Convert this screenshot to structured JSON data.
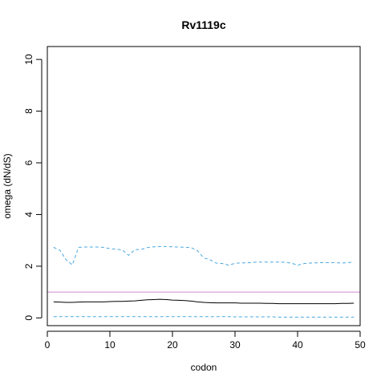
{
  "chart_data": {
    "type": "line",
    "title": "Rv1119c",
    "xlabel": "codon",
    "ylabel": "omega (dN/dS)",
    "xlim": [
      0,
      50
    ],
    "ylim": [
      -0.3,
      10.5
    ],
    "xticks": [
      0,
      10,
      20,
      30,
      40,
      50
    ],
    "yticks": [
      0,
      2,
      4,
      6,
      8,
      10
    ],
    "grid": false,
    "legend": "none",
    "reference_line": {
      "y": 1,
      "color": "#cc88cc"
    },
    "x": [
      1,
      2,
      3,
      4,
      5,
      6,
      7,
      8,
      9,
      10,
      11,
      12,
      13,
      14,
      15,
      16,
      17,
      18,
      19,
      20,
      21,
      22,
      23,
      24,
      25,
      26,
      27,
      28,
      29,
      30,
      31,
      32,
      33,
      34,
      35,
      36,
      37,
      38,
      39,
      40,
      41,
      42,
      43,
      44,
      45,
      46,
      47,
      48,
      49
    ],
    "series": [
      {
        "color": "#000000",
        "dash": "solid",
        "values": [
          0.62,
          0.61,
          0.6,
          0.6,
          0.61,
          0.62,
          0.62,
          0.62,
          0.62,
          0.63,
          0.64,
          0.64,
          0.65,
          0.66,
          0.68,
          0.7,
          0.71,
          0.72,
          0.71,
          0.69,
          0.68,
          0.67,
          0.65,
          0.62,
          0.6,
          0.59,
          0.58,
          0.58,
          0.58,
          0.58,
          0.57,
          0.57,
          0.57,
          0.57,
          0.56,
          0.56,
          0.55,
          0.55,
          0.55,
          0.55,
          0.55,
          0.55,
          0.55,
          0.55,
          0.55,
          0.55,
          0.56,
          0.56,
          0.57
        ]
      },
      {
        "color": "#4aa8e0",
        "dash": "dashed",
        "values": [
          2.73,
          2.62,
          2.25,
          2.05,
          2.73,
          2.74,
          2.74,
          2.74,
          2.73,
          2.68,
          2.66,
          2.63,
          2.42,
          2.64,
          2.65,
          2.72,
          2.75,
          2.76,
          2.76,
          2.75,
          2.74,
          2.73,
          2.72,
          2.6,
          2.32,
          2.25,
          2.12,
          2.1,
          2.04,
          2.11,
          2.13,
          2.13,
          2.15,
          2.16,
          2.16,
          2.16,
          2.16,
          2.15,
          2.12,
          2.04,
          2.1,
          2.12,
          2.13,
          2.14,
          2.14,
          2.14,
          2.12,
          2.14,
          2.16
        ]
      },
      {
        "color": "#4aa8e0",
        "dash": "dashed",
        "values": [
          0.05,
          0.05,
          0.05,
          0.05,
          0.05,
          0.05,
          0.05,
          0.05,
          0.05,
          0.05,
          0.05,
          0.05,
          0.05,
          0.05,
          0.05,
          0.05,
          0.05,
          0.05,
          0.05,
          0.05,
          0.05,
          0.05,
          0.05,
          0.05,
          0.05,
          0.05,
          0.05,
          0.05,
          0.05,
          0.04,
          0.04,
          0.04,
          0.04,
          0.04,
          0.04,
          0.04,
          0.03,
          0.03,
          0.03,
          0.03,
          0.03,
          0.03,
          0.03,
          0.03,
          0.03,
          0.03,
          0.03,
          0.03,
          0.03
        ]
      }
    ]
  }
}
